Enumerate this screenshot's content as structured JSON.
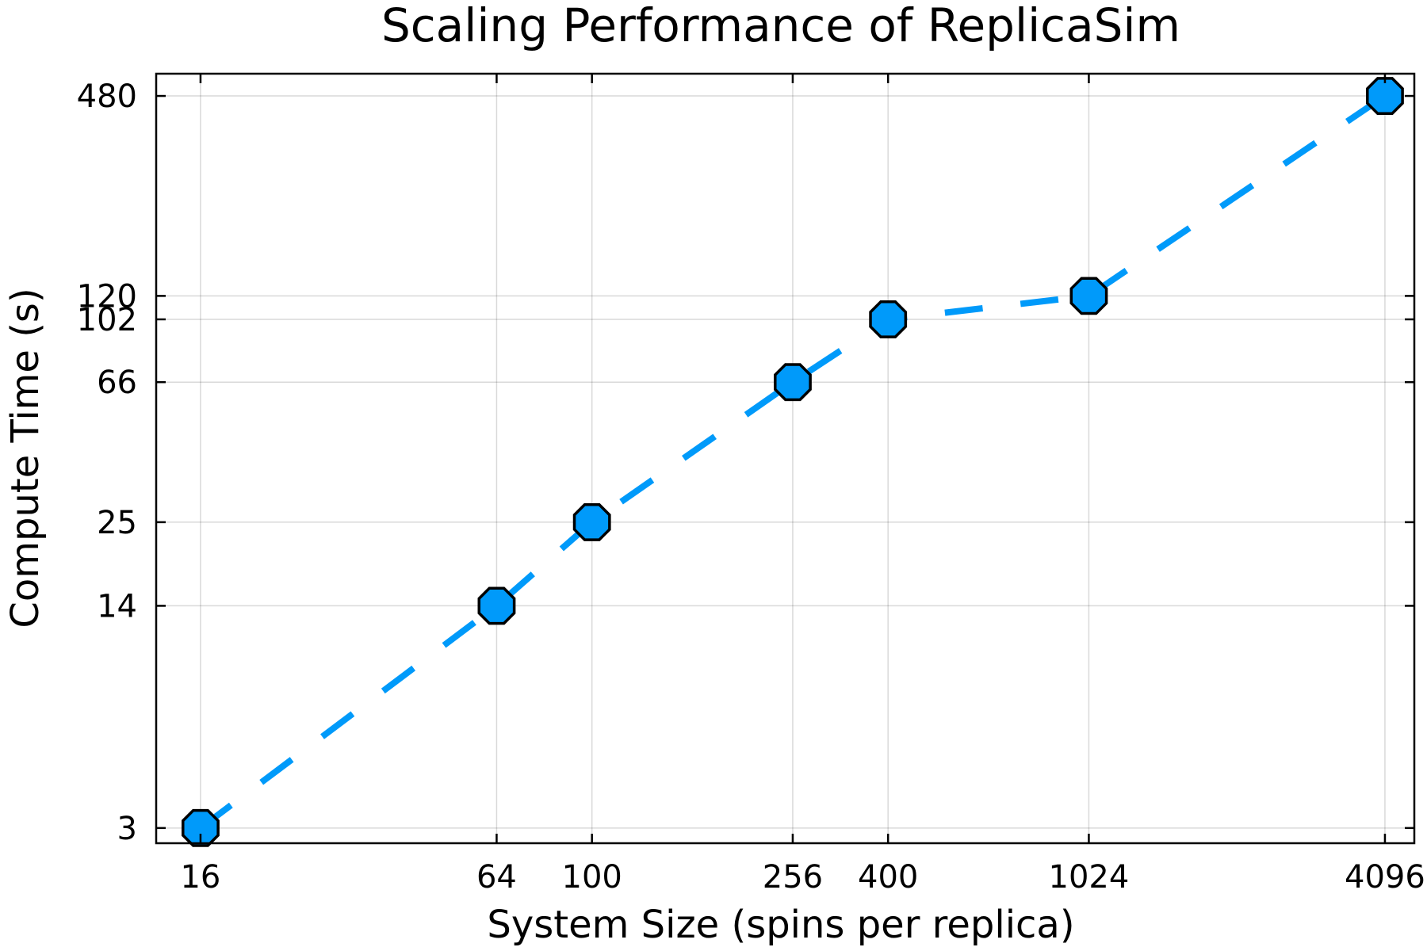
{
  "chart_data": {
    "type": "line",
    "title": "Scaling Performance of ReplicaSim",
    "xlabel": "System Size (spins per replica)",
    "ylabel": "Compute Time (s)",
    "x_scale": "log",
    "y_scale": "log",
    "xlim": [
      13,
      4700
    ],
    "ylim": [
      2.7,
      560
    ],
    "x_ticks": [
      16,
      64,
      100,
      256,
      400,
      1024,
      4096
    ],
    "x_tick_labels": [
      "16",
      "64",
      "100",
      "256",
      "400",
      "1024",
      "4096"
    ],
    "y_ticks": [
      3,
      14,
      25,
      66,
      102,
      120,
      480
    ],
    "y_tick_labels": [
      "3",
      "14",
      "25",
      "66",
      "102",
      "120",
      "480"
    ],
    "grid": true,
    "series": [
      {
        "x": [
          16,
          64,
          100,
          256,
          400,
          1024,
          4096
        ],
        "y": [
          3,
          14,
          25,
          66,
          102,
          120,
          480
        ],
        "color": "#009AFA",
        "line_style": "dashed",
        "marker": "octagon"
      }
    ]
  }
}
